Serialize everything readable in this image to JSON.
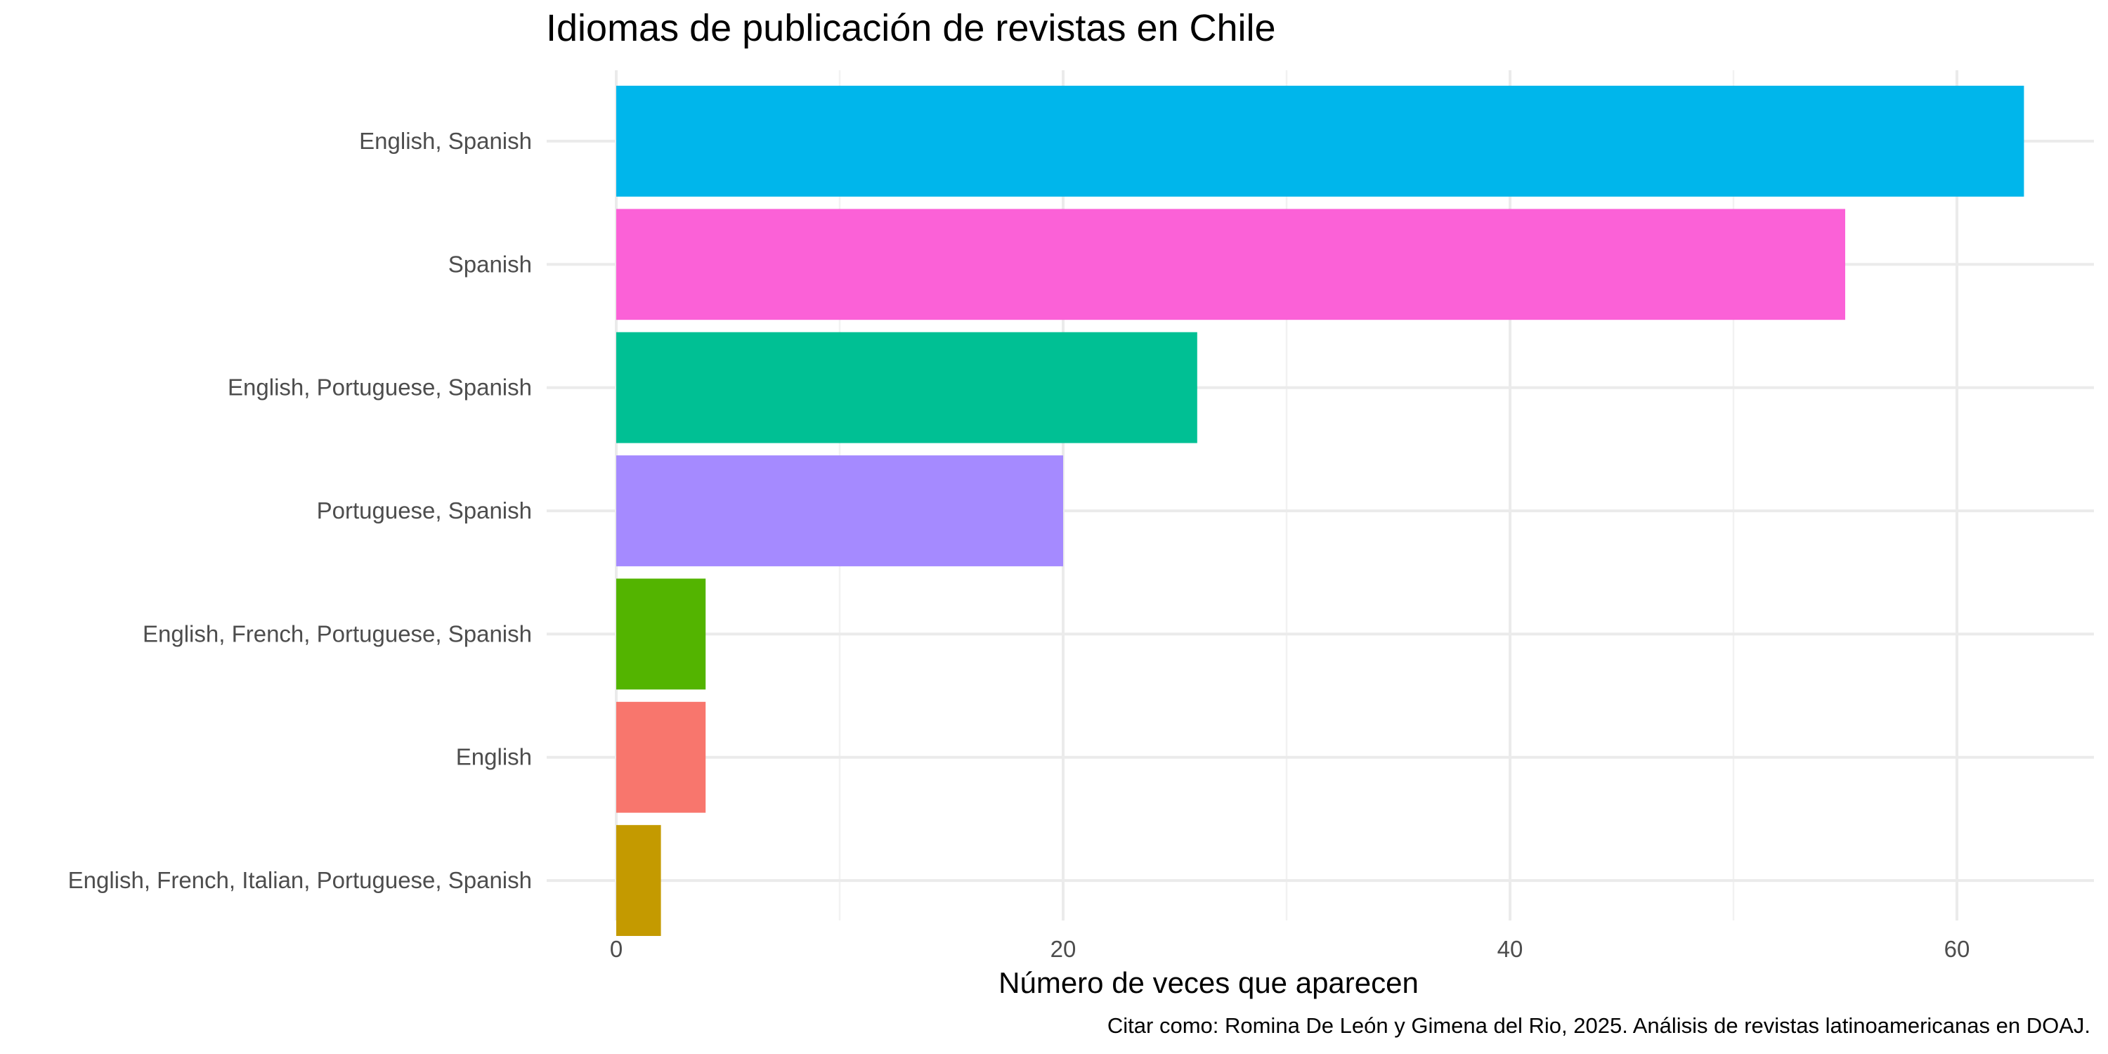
{
  "chart_data": {
    "type": "bar",
    "orientation": "horizontal",
    "title": "Idiomas de publicación de revistas en Chile",
    "xlabel": "Número de veces que aparecen",
    "ylabel": "",
    "caption": "Citar como: Romina De León y Gimena del Rio, 2025. Análisis de revistas latinoamericanas en DOAJ.",
    "xlim": [
      0,
      66
    ],
    "x_ticks": [
      0,
      20,
      40,
      60
    ],
    "grid": true,
    "legend": "none",
    "categories": [
      "English, Spanish",
      "Spanish",
      "English, Portuguese, Spanish",
      "Portuguese, Spanish",
      "English, French, Portuguese, Spanish",
      "English",
      "English, French, Italian, Portuguese, Spanish"
    ],
    "values": [
      63,
      55,
      26,
      20,
      4,
      4,
      2
    ],
    "colors": [
      "#00B6EB",
      "#FB61D7",
      "#00C094",
      "#A58AFF",
      "#53B400",
      "#F8766D",
      "#C49A00"
    ]
  }
}
